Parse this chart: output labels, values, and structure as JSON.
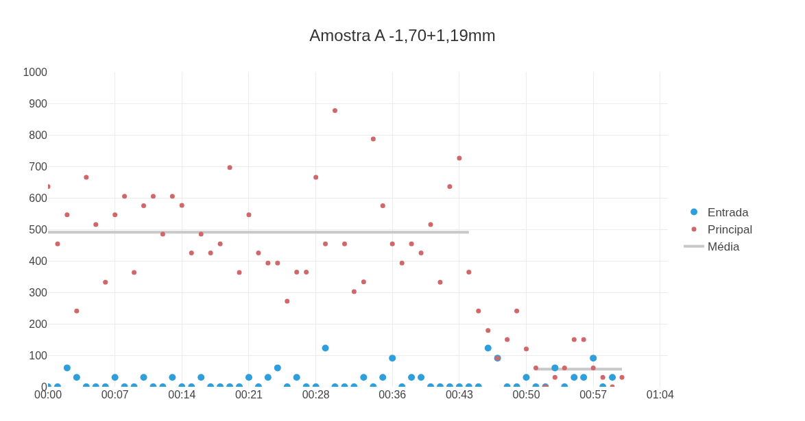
{
  "chart_data": {
    "type": "scatter",
    "title": "Amostra A -1,70+1,19mm",
    "x": [
      0,
      0.0167,
      0.0333,
      0.05,
      0.0667,
      0.0833,
      0.1,
      0.1167,
      0.1333,
      0.15,
      0.1667,
      0.1833,
      0.2,
      0.2167,
      0.2333,
      0.25,
      0.2667,
      0.2833,
      0.3,
      0.3167,
      0.3333,
      0.35,
      0.3667,
      0.3833,
      0.4,
      0.4167,
      0.4333,
      0.45,
      0.4667,
      0.4833,
      0.5,
      0.5167,
      0.5333,
      0.55,
      0.5667,
      0.5833,
      0.6,
      0.6167,
      0.6333,
      0.65,
      0.6667,
      0.6833,
      0.7,
      0.7167,
      0.7333,
      0.75,
      0.7667,
      0.7833,
      0.8,
      0.8167,
      0.8333,
      0.85,
      0.8667,
      0.8833,
      0.9,
      0.9167,
      0.9333,
      0.95,
      0.9667,
      0.9833,
      1
    ],
    "series": [
      {
        "name": "Entrada",
        "color": "#2e9fdc",
        "marker": "circle",
        "values": [
          0,
          0,
          60,
          30,
          0,
          0,
          0,
          30,
          0,
          0,
          30,
          0,
          0,
          30,
          0,
          0,
          30,
          0,
          0,
          0,
          0,
          30,
          0,
          30,
          60,
          0,
          30,
          0,
          0,
          123,
          0,
          0,
          0,
          30,
          0,
          30,
          91,
          0,
          30,
          30,
          0,
          0,
          0,
          0,
          0,
          0,
          123,
          91,
          0,
          0,
          30,
          0,
          0,
          60,
          0,
          30,
          30,
          91,
          0,
          30,
          null
        ]
      },
      {
        "name": "Principal",
        "color": "#d0686a",
        "marker": "circle",
        "values": [
          636,
          454,
          546,
          241,
          665,
          515,
          332,
          546,
          605,
          363,
          575,
          605,
          485,
          605,
          576,
          425,
          485,
          425,
          454,
          696,
          363,
          546,
          425,
          393,
          393,
          272,
          364,
          364,
          665,
          454,
          877,
          454,
          302,
          333,
          787,
          575,
          454,
          393,
          454,
          425,
          515,
          332,
          636,
          726,
          364,
          241,
          179,
          91,
          150,
          241,
          120,
          60,
          0,
          30,
          60,
          150,
          150,
          60,
          30,
          0,
          30
        ]
      },
      {
        "name": "Média",
        "type": "line",
        "color": "#c8c8c8",
        "x": [
          0,
          0.7333,
          0.75,
          0.85,
          1
        ],
        "values": [
          491,
          491,
          null,
          56,
          56
        ]
      }
    ],
    "xlim": [
      0,
      1.08
    ],
    "xticks": [
      {
        "value": 0,
        "label": "00:00"
      },
      {
        "value": 0.1167,
        "label": "00:07"
      },
      {
        "value": 0.2333,
        "label": "00:14"
      },
      {
        "value": 0.35,
        "label": "00:21"
      },
      {
        "value": 0.4667,
        "label": "00:28"
      },
      {
        "value": 0.6,
        "label": "00:36"
      },
      {
        "value": 0.7167,
        "label": "00:43"
      },
      {
        "value": 0.8333,
        "label": "00:50"
      },
      {
        "value": 0.95,
        "label": "00:57"
      },
      {
        "value": 1.0667,
        "label": "01:04"
      }
    ],
    "ylim": [
      0,
      1000
    ],
    "yticks": [
      0,
      100,
      200,
      300,
      400,
      500,
      600,
      700,
      800,
      900,
      1000
    ],
    "grid": true,
    "legend": "right"
  }
}
